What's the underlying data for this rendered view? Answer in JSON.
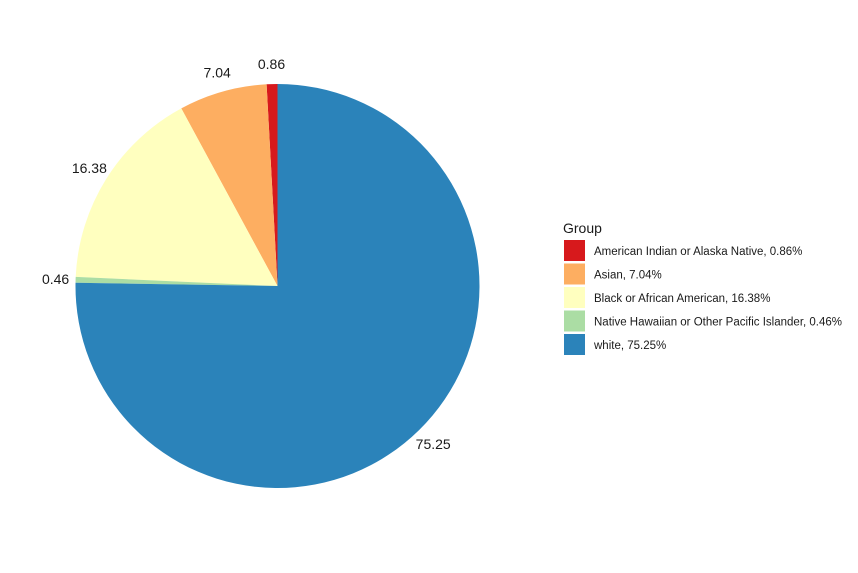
{
  "chart_data": {
    "type": "pie",
    "title": "",
    "legend_title": "Group",
    "legend_position": "right",
    "slices": [
      {
        "label": "American Indian or Alaska Native, 0.86%",
        "value": 0.86,
        "data_label": "0.86",
        "color": "#d7191c"
      },
      {
        "label": "Asian, 7.04%",
        "value": 7.04,
        "data_label": "7.04",
        "color": "#fdae61"
      },
      {
        "label": "Black or African American, 16.38%",
        "value": 16.38,
        "data_label": "16.38",
        "color": "#ffffbf"
      },
      {
        "label": "Native Hawaiian or Other Pacific Islander, 0.46%",
        "value": 0.46,
        "data_label": "0.46",
        "color": "#abdda4"
      },
      {
        "label": "white, 75.25%",
        "value": 75.25,
        "data_label": "75.25",
        "color": "#2b83ba"
      }
    ]
  }
}
